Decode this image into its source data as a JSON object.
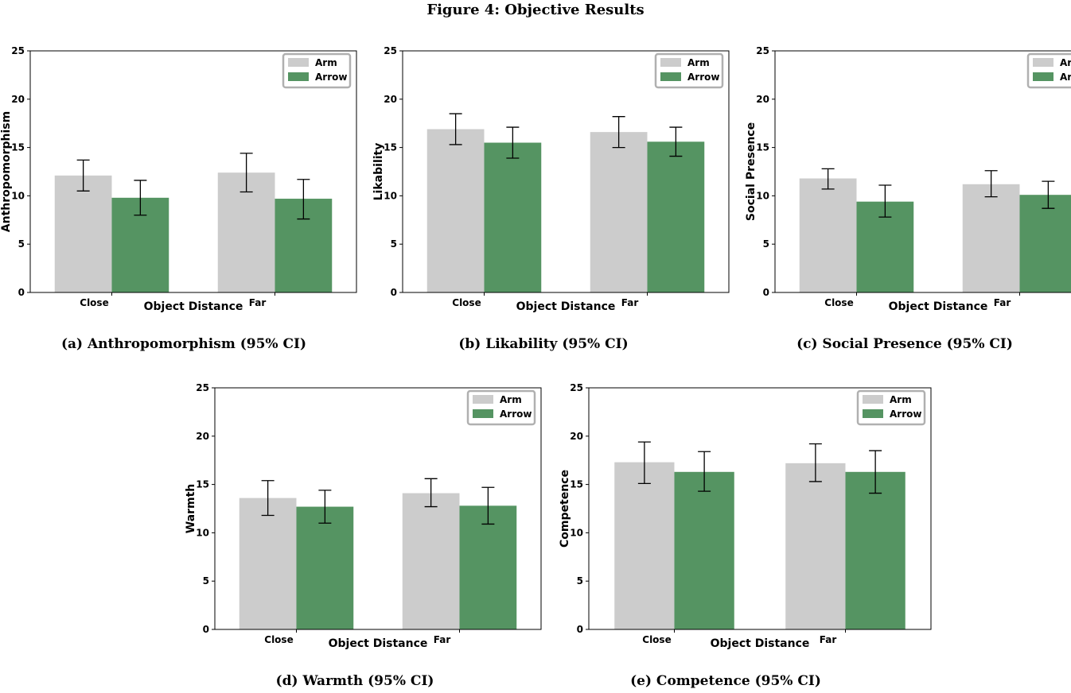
{
  "figure_title": "Figure 4: Objective Results",
  "colors": {
    "arm": "#cccccc",
    "arrow": "#559462"
  },
  "chart_data": [
    {
      "type": "bar",
      "caption": "(a) Anthropomorphism (95% CI)",
      "categories": [
        "Close",
        "Far"
      ],
      "xlabel": "Object Distance",
      "ylabel": "Anthropomorphism",
      "ylim": [
        0,
        25
      ],
      "yticks": [
        "0",
        "5",
        "10",
        "15",
        "20",
        "25"
      ],
      "legend_position": "top-right",
      "series": [
        {
          "name": "Arm",
          "values": [
            12.1,
            12.4
          ],
          "ci_low": [
            10.5,
            10.4
          ],
          "ci_high": [
            13.7,
            14.4
          ]
        },
        {
          "name": "Arrow",
          "values": [
            9.8,
            9.7
          ],
          "ci_low": [
            8.0,
            7.6
          ],
          "ci_high": [
            11.6,
            11.7
          ]
        }
      ]
    },
    {
      "type": "bar",
      "caption": "(b) Likability (95% CI)",
      "categories": [
        "Close",
        "Far"
      ],
      "xlabel": "Object Distance",
      "ylabel": "Likability",
      "ylim": [
        0,
        25
      ],
      "yticks": [
        "0",
        "5",
        "10",
        "15",
        "20",
        "25"
      ],
      "legend_position": "top-right",
      "series": [
        {
          "name": "Arm",
          "values": [
            16.9,
            16.6
          ],
          "ci_low": [
            15.3,
            15.0
          ],
          "ci_high": [
            18.5,
            18.2
          ]
        },
        {
          "name": "Arrow",
          "values": [
            15.5,
            15.6
          ],
          "ci_low": [
            13.9,
            14.1
          ],
          "ci_high": [
            17.1,
            17.1
          ]
        }
      ]
    },
    {
      "type": "bar",
      "caption": "(c) Social Presence (95% CI)",
      "categories": [
        "Close",
        "Far"
      ],
      "xlabel": "Object Distance",
      "ylabel": "Social Presence",
      "ylim": [
        0,
        25
      ],
      "yticks": [
        "0",
        "5",
        "10",
        "15",
        "20",
        "25"
      ],
      "legend_position": "top-right",
      "series": [
        {
          "name": "Arm",
          "values": [
            11.8,
            11.2
          ],
          "ci_low": [
            10.7,
            9.9
          ],
          "ci_high": [
            12.8,
            12.6
          ]
        },
        {
          "name": "Arrow",
          "values": [
            9.4,
            10.1
          ],
          "ci_low": [
            7.8,
            8.7
          ],
          "ci_high": [
            11.1,
            11.5
          ]
        }
      ]
    },
    {
      "type": "bar",
      "caption": "(d) Warmth (95% CI)",
      "categories": [
        "Close",
        "Far"
      ],
      "xlabel": "Object Distance",
      "ylabel": "Warmth",
      "ylim": [
        0,
        25
      ],
      "yticks": [
        "0",
        "5",
        "10",
        "15",
        "20",
        "25"
      ],
      "legend_position": "top-right",
      "series": [
        {
          "name": "Arm",
          "values": [
            13.6,
            14.1
          ],
          "ci_low": [
            11.8,
            12.7
          ],
          "ci_high": [
            15.4,
            15.6
          ]
        },
        {
          "name": "Arrow",
          "values": [
            12.7,
            12.8
          ],
          "ci_low": [
            11.0,
            10.9
          ],
          "ci_high": [
            14.4,
            14.7
          ]
        }
      ]
    },
    {
      "type": "bar",
      "caption": "(e) Competence (95% CI)",
      "categories": [
        "Close",
        "Far"
      ],
      "xlabel": "Object Distance",
      "ylabel": "Competence",
      "ylim": [
        0,
        25
      ],
      "yticks": [
        "0",
        "5",
        "10",
        "15",
        "20",
        "25"
      ],
      "legend_position": "top-right",
      "series": [
        {
          "name": "Arm",
          "values": [
            17.3,
            17.2
          ],
          "ci_low": [
            15.1,
            15.3
          ],
          "ci_high": [
            19.4,
            19.2
          ]
        },
        {
          "name": "Arrow",
          "values": [
            16.3,
            16.3
          ],
          "ci_low": [
            14.3,
            14.1
          ],
          "ci_high": [
            18.4,
            18.5
          ]
        }
      ]
    }
  ]
}
